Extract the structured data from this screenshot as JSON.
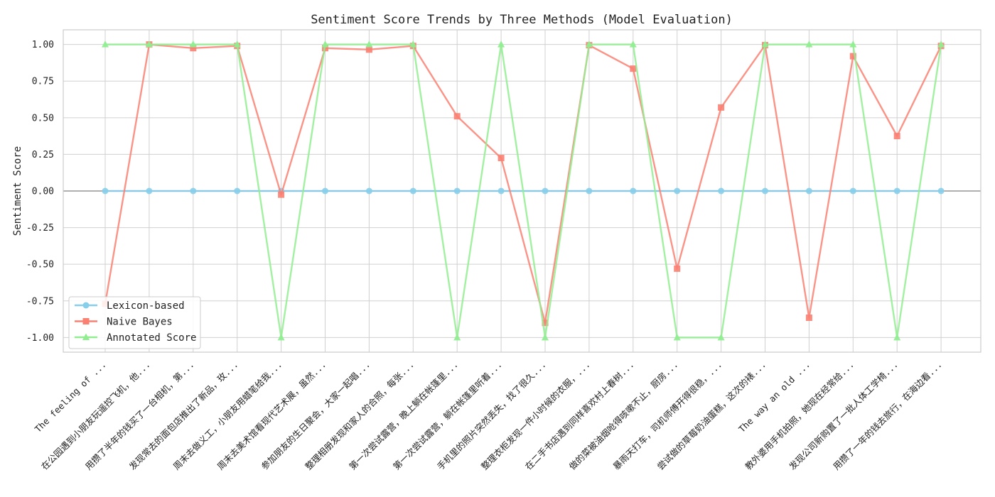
{
  "chart_data": {
    "type": "line",
    "title": "Sentiment Score Trends by Three Methods (Model Evaluation)",
    "xlabel": "",
    "ylabel": "Sentiment Score",
    "ylim": [
      -1.1,
      1.1
    ],
    "yticks": [
      "-1.00",
      "-0.75",
      "-0.50",
      "-0.25",
      "0.00",
      "0.25",
      "0.50",
      "0.75",
      "1.00"
    ],
    "grid": true,
    "legend_position": "lower-left",
    "categories": [
      "The feeling of ...",
      "在公园遇到小朋友玩遥控飞机，他...",
      "用攒了半年的钱买了一台相机，第...",
      "发现常去的面包店推出了新品，玫...",
      "周末去做义工，小朋友用蜡笔给我...",
      "周末去美术馆看现代艺术展，虽然...",
      "参加朋友的生日聚会，大家一起唱...",
      "整理相册发现和家人的合照，每张...",
      "第一次尝试露营，晚上躺在帐篷里...",
      "第一次尝试露营，躺在帐篷里听着...",
      "手机里的照片突然丢失，找了很久...",
      "整理衣柜发现一件小时候的衣服，...",
      "在二手书店遇到同样喜欢村上春树...",
      "做的菜被油烟呛得咳嗽不止，厨房...",
      "暴雨天打车，司机师傅开得很稳，...",
      "尝试做的草莓奶油蛋糕，这次的裱...",
      "The way an old ...",
      "教外婆用手机拍照，她现在经常给...",
      "发现公司新购置了一批人体工学椅...",
      "用攒了一年的钱去旅行，在海边看..."
    ],
    "series": [
      {
        "name": "Lexicon-based",
        "color": "#87ceeb",
        "marker": "circle",
        "values": [
          0,
          0,
          0,
          0,
          0,
          0,
          0,
          0,
          0,
          0,
          0,
          0,
          0,
          0,
          0,
          0,
          0,
          0,
          0,
          0
        ]
      },
      {
        "name": "Naive Bayes",
        "color": "#fa8072",
        "marker": "square",
        "values": [
          -0.77,
          1.0,
          0.975,
          0.99,
          -0.025,
          0.975,
          0.965,
          0.99,
          0.51,
          0.225,
          -0.9,
          0.995,
          0.835,
          -0.53,
          0.57,
          0.995,
          -0.865,
          0.92,
          0.375,
          0.99
        ]
      },
      {
        "name": "Annotated Score",
        "color": "#90ee90",
        "marker": "triangle",
        "values": [
          1,
          1,
          1,
          1,
          -1,
          1,
          1,
          1,
          -1,
          1,
          -1,
          1,
          1,
          -1,
          -1,
          1,
          1,
          1,
          -1,
          1
        ]
      }
    ]
  }
}
